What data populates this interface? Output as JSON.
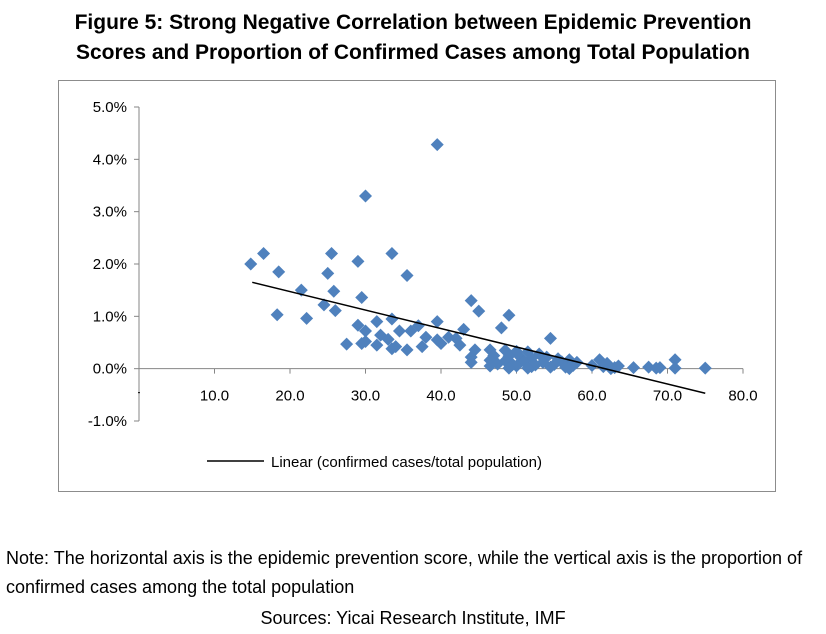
{
  "title": {
    "line1": "Figure 5: Strong Negative Correlation between Epidemic Prevention",
    "line2": "Scores and Proportion of Confirmed Cases among Total Population"
  },
  "note": "Note: The horizontal axis is the epidemic prevention score, while the vertical axis is the proportion of confirmed cases among the total population",
  "sources": "Sources: Yicai Research Institute, IMF",
  "colors": {
    "marker": "#4f81bd",
    "trendline": "#000000",
    "axis": "#868686",
    "frame": "#8c8c8c"
  },
  "chart_data": {
    "type": "scatter",
    "title": "",
    "xlabel": "",
    "ylabel": "",
    "xlim": [
      0,
      80
    ],
    "ylim": [
      -0.01,
      0.05
    ],
    "x_ticks": [
      "10.0",
      "20.0",
      "30.0",
      "40.0",
      "50.0",
      "60.0",
      "70.0",
      "80.0"
    ],
    "y_ticks": [
      "-1.0%",
      "0.0%",
      "1.0%",
      "2.0%",
      "3.0%",
      "4.0%",
      "5.0%"
    ],
    "grid": false,
    "legend": {
      "position": "bottom",
      "entries": [
        "Linear (confirmed cases/total population)"
      ]
    },
    "trendline": {
      "name": "Linear (confirmed cases/total population)",
      "x": [
        15,
        75
      ],
      "y": [
        0.0165,
        -0.0047
      ]
    },
    "series": [
      {
        "marker": "diamond",
        "points": [
          [
            39.5,
            0.0428
          ],
          [
            30.0,
            0.033
          ],
          [
            16.5,
            0.022
          ],
          [
            33.5,
            0.022
          ],
          [
            25.5,
            0.022
          ],
          [
            14.8,
            0.02
          ],
          [
            29.0,
            0.0205
          ],
          [
            18.5,
            0.0185
          ],
          [
            25.0,
            0.0182
          ],
          [
            35.5,
            0.0178
          ],
          [
            21.5,
            0.015
          ],
          [
            25.8,
            0.0148
          ],
          [
            29.5,
            0.0136
          ],
          [
            44.0,
            0.013
          ],
          [
            24.5,
            0.0122
          ],
          [
            18.3,
            0.0103
          ],
          [
            22.2,
            0.0096
          ],
          [
            26.0,
            0.0111
          ],
          [
            45.0,
            0.011
          ],
          [
            49.0,
            0.0102
          ],
          [
            31.5,
            0.009
          ],
          [
            33.5,
            0.0095
          ],
          [
            39.5,
            0.009
          ],
          [
            29.0,
            0.0083
          ],
          [
            37.0,
            0.0082
          ],
          [
            48.0,
            0.0078
          ],
          [
            43.0,
            0.0075
          ],
          [
            30.0,
            0.0072
          ],
          [
            34.5,
            0.0072
          ],
          [
            36.0,
            0.0072
          ],
          [
            32.0,
            0.0064
          ],
          [
            38.0,
            0.006
          ],
          [
            41.0,
            0.006
          ],
          [
            42.0,
            0.0058
          ],
          [
            33.0,
            0.0056
          ],
          [
            39.5,
            0.0055
          ],
          [
            54.5,
            0.0058
          ],
          [
            30.0,
            0.0052
          ],
          [
            29.5,
            0.0048
          ],
          [
            40.0,
            0.0048
          ],
          [
            27.5,
            0.0047
          ],
          [
            31.5,
            0.0045
          ],
          [
            34.0,
            0.0042
          ],
          [
            37.5,
            0.0042
          ],
          [
            42.5,
            0.0045
          ],
          [
            33.5,
            0.0038
          ],
          [
            35.5,
            0.0036
          ],
          [
            44.5,
            0.0036
          ],
          [
            46.5,
            0.0036
          ],
          [
            48.5,
            0.0035
          ],
          [
            50.0,
            0.0033
          ],
          [
            51.5,
            0.0032
          ],
          [
            53.0,
            0.0028
          ],
          [
            44.0,
            0.0022
          ],
          [
            47.0,
            0.0025
          ],
          [
            49.0,
            0.0024
          ],
          [
            50.5,
            0.0022
          ],
          [
            52.0,
            0.002
          ],
          [
            54.0,
            0.0022
          ],
          [
            55.5,
            0.0019
          ],
          [
            57.0,
            0.0017
          ],
          [
            61.0,
            0.0017
          ],
          [
            71.0,
            0.0017
          ],
          [
            46.5,
            0.0016
          ],
          [
            48.5,
            0.0015
          ],
          [
            51.0,
            0.0014
          ],
          [
            53.5,
            0.0012
          ],
          [
            56.0,
            0.0013
          ],
          [
            58.0,
            0.0012
          ],
          [
            62.0,
            0.001
          ],
          [
            44.0,
            0.0012
          ],
          [
            47.5,
            0.0009
          ],
          [
            49.5,
            0.0008
          ],
          [
            52.5,
            0.0007
          ],
          [
            55.0,
            0.0008
          ],
          [
            57.5,
            0.0006
          ],
          [
            60.0,
            0.0006
          ],
          [
            63.5,
            0.0005
          ],
          [
            46.5,
            0.0005
          ],
          [
            50.0,
            0.0005
          ],
          [
            52.0,
            0.0004
          ],
          [
            54.5,
            0.0003
          ],
          [
            56.5,
            0.0003
          ],
          [
            61.5,
            0.0004
          ],
          [
            63.0,
            0.0002
          ],
          [
            65.5,
            0.0002
          ],
          [
            67.5,
            0.0003
          ],
          [
            69.0,
            0.0002
          ],
          [
            71.0,
            0.0001
          ],
          [
            75.0,
            0.0001
          ],
          [
            49.0,
            0.0001
          ],
          [
            51.5,
            0.0001
          ],
          [
            57.0,
            0.0
          ],
          [
            62.5,
            0.0
          ],
          [
            68.5,
            0.0001
          ]
        ]
      }
    ]
  }
}
